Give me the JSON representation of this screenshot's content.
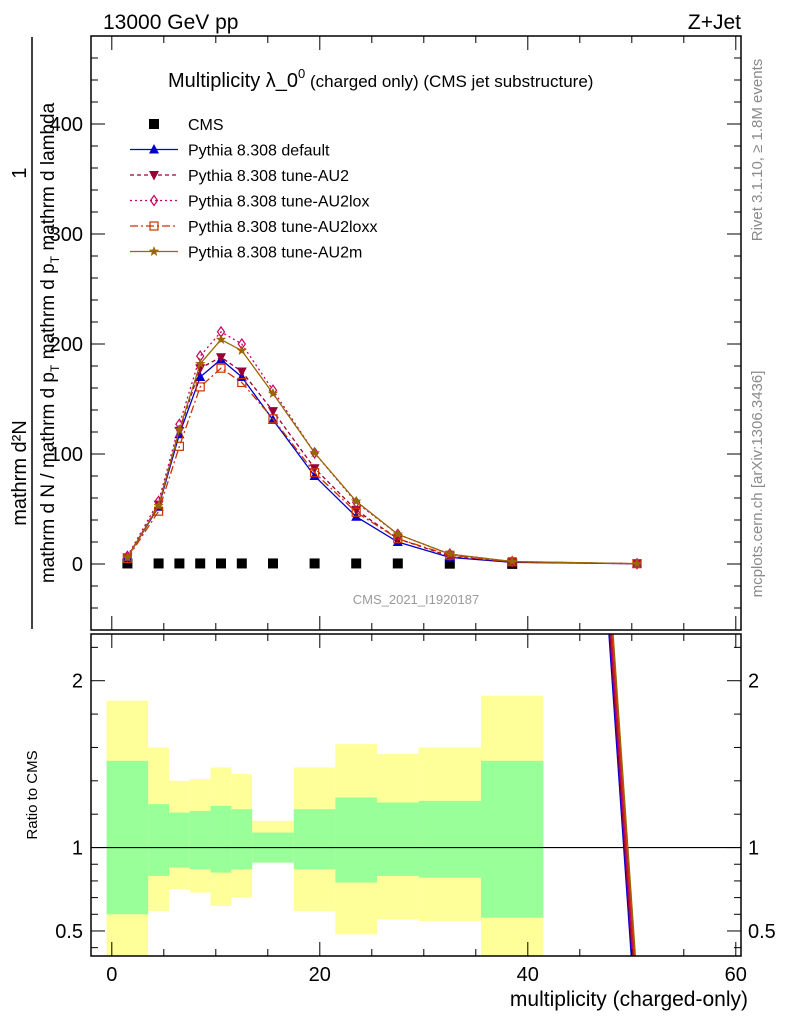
{
  "header": {
    "left": "13000 GeV pp",
    "right": "Z+Jet"
  },
  "title": {
    "main": "Multiplicity λ_0",
    "sup": "0",
    "suffix": " (charged only) (CMS jet substructure)"
  },
  "side_labels": {
    "rivet": "Rivet 3.1.10, ≥ 1.8M events",
    "mcplots": "mcplots.cern.ch [arXiv:1306.3436]"
  },
  "watermark": "CMS_2021_I1920187",
  "ylabel": {
    "one": "1",
    "numerator": "mathrm d²N",
    "denominator_a": "mathrm d N / mathrm d p",
    "denominator_sub": "T",
    "denominator_b": " mathrm d p",
    "denominator_sub2": "T",
    "denominator_c": " mathrm d lambda"
  },
  "ratio_ylabel": "Ratio to CMS",
  "xlabel": "multiplicity (charged-only)",
  "chart_data": [
    {
      "type": "line",
      "xlim": [
        -2,
        60.5
      ],
      "ylim": [
        -60,
        480
      ],
      "xticks": [
        0,
        20,
        40,
        60
      ],
      "yticks": [
        0,
        100,
        200,
        300,
        400
      ],
      "series": [
        {
          "name": "CMS",
          "color": "#000000",
          "marker": "square",
          "x": [
            1.5,
            4.5,
            6.5,
            8.5,
            10.5,
            12.5,
            15.5,
            19.5,
            23.5,
            27.5,
            32.5,
            38.5
          ],
          "y": [
            0.5,
            0.5,
            0.5,
            0.5,
            0.5,
            0.5,
            0.5,
            0.5,
            0.5,
            0.5,
            0.3,
            0.1
          ]
        },
        {
          "name": "Pythia 8.308 default",
          "color": "#0000cc",
          "marker": "triangle-up",
          "dash": "",
          "x": [
            1.5,
            4.5,
            6.5,
            8.5,
            10.5,
            12.5,
            15.5,
            19.5,
            23.5,
            27.5,
            32.5,
            38.5,
            50.5
          ],
          "y": [
            6,
            52,
            118,
            170,
            186,
            170,
            131,
            80,
            43,
            20,
            6,
            1.5,
            0.2
          ]
        },
        {
          "name": "Pythia 8.308 tune-AU2",
          "color": "#990033",
          "marker": "triangle-down",
          "dash": "4,3",
          "x": [
            1.5,
            4.5,
            6.5,
            8.5,
            10.5,
            12.5,
            15.5,
            19.5,
            23.5,
            27.5,
            32.5,
            38.5,
            50.5
          ],
          "y": [
            6,
            54,
            121,
            178,
            188,
            175,
            139,
            87,
            49,
            23,
            7,
            1.7,
            0.2
          ]
        },
        {
          "name": "Pythia 8.308 tune-AU2lox",
          "color": "#cc0066",
          "marker": "diamond",
          "dash": "2,3",
          "x": [
            1.5,
            4.5,
            6.5,
            8.5,
            10.5,
            12.5,
            15.5,
            19.5,
            23.5,
            27.5,
            32.5,
            38.5,
            50.5
          ],
          "y": [
            7,
            57,
            127,
            189,
            211,
            200,
            158,
            101,
            56,
            27,
            9,
            2.2,
            0.3
          ]
        },
        {
          "name": "Pythia 8.308 tune-AU2loxx",
          "color": "#cc3300",
          "marker": "square-open",
          "dash": "8,3,2,3",
          "x": [
            1.5,
            4.5,
            6.5,
            8.5,
            10.5,
            12.5,
            15.5,
            19.5,
            23.5,
            27.5,
            32.5,
            38.5,
            50.5
          ],
          "y": [
            5,
            48,
            107,
            161,
            178,
            165,
            132,
            83,
            47,
            23,
            8,
            2,
            0.3
          ]
        },
        {
          "name": "Pythia 8.308 tune-AU2m",
          "color": "#996600",
          "marker": "star",
          "dash": "",
          "x": [
            1.5,
            4.5,
            6.5,
            8.5,
            10.5,
            12.5,
            15.5,
            19.5,
            23.5,
            27.5,
            32.5,
            38.5,
            50.5
          ],
          "y": [
            6,
            53,
            122,
            182,
            204,
            194,
            155,
            101,
            57,
            27,
            9,
            2.2,
            0.3
          ]
        }
      ]
    },
    {
      "type": "area",
      "xlim": [
        -2,
        60.5
      ],
      "ylim": [
        0.35,
        2.28
      ],
      "xticks": [
        0,
        20,
        40,
        60
      ],
      "yticks": [
        0.5,
        1,
        2
      ],
      "reference_line": 1,
      "bands": {
        "edges": [
          -0.5,
          3.5,
          5.5,
          7.5,
          9.5,
          11.5,
          13.5,
          17.5,
          21.5,
          25.5,
          29.5,
          35.5,
          41.5
        ],
        "outer_lo": [
          0.35,
          0.62,
          0.75,
          0.73,
          0.65,
          0.7,
          0.91,
          0.62,
          0.48,
          0.57,
          0.56,
          0.35
        ],
        "outer_hi": [
          1.88,
          1.6,
          1.4,
          1.41,
          1.48,
          1.44,
          1.16,
          1.48,
          1.62,
          1.56,
          1.6,
          1.91
        ],
        "inner_lo": [
          0.6,
          0.83,
          0.88,
          0.87,
          0.85,
          0.87,
          0.91,
          0.87,
          0.79,
          0.83,
          0.82,
          0.58
        ],
        "inner_hi": [
          1.52,
          1.26,
          1.21,
          1.22,
          1.25,
          1.23,
          1.09,
          1.23,
          1.3,
          1.27,
          1.28,
          1.52
        ]
      },
      "ratio_lines": [
        {
          "color": "#0000cc",
          "x": [
            47.0,
            50.0
          ],
          "y": [
            3.0,
            0.3
          ]
        },
        {
          "color": "#990033",
          "x": [
            47.1,
            50.1
          ],
          "y": [
            3.0,
            0.3
          ]
        },
        {
          "color": "#cc0066",
          "x": [
            47.2,
            50.2
          ],
          "y": [
            3.0,
            0.3
          ]
        },
        {
          "color": "#cc3300",
          "x": [
            47.3,
            50.3
          ],
          "y": [
            3.0,
            0.3
          ]
        },
        {
          "color": "#996600",
          "x": [
            47.4,
            50.4
          ],
          "y": [
            3.0,
            0.3
          ]
        }
      ]
    }
  ]
}
